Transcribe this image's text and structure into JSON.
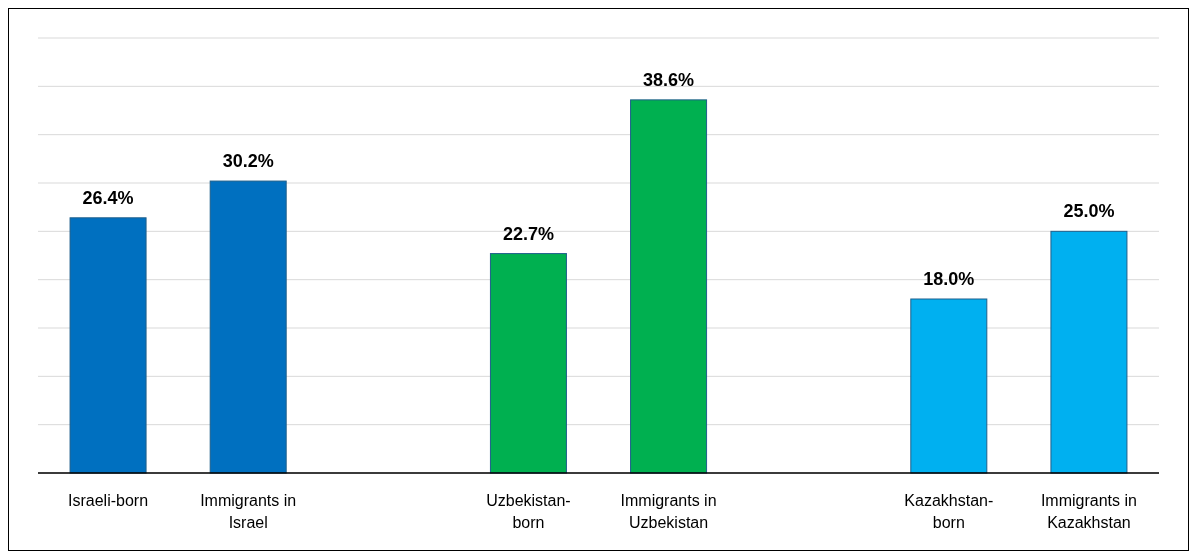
{
  "chart_data": {
    "type": "bar",
    "categories": [
      "Israeli-born",
      "Immigrants in Israel",
      null,
      "Uzbekistan-born",
      "Immigrants in Uzbekistan",
      null,
      "Kazakhstan-born",
      "Immigrants in Kazakhstan"
    ],
    "values": [
      26.4,
      30.2,
      null,
      22.7,
      38.6,
      null,
      18.0,
      25.0
    ],
    "colors": [
      "#0070c0",
      "#0070c0",
      null,
      "#00b050",
      "#00b050",
      null,
      "#00b0f0",
      "#00b0f0"
    ],
    "value_labels": [
      "26.4%",
      "30.2%",
      null,
      "22.7%",
      "38.6%",
      null,
      "18.0%",
      "25.0%"
    ],
    "ylim": [
      0,
      45
    ],
    "yticks": [
      {
        "value": 0,
        "label": null
      },
      {
        "value": 5,
        "label": null
      },
      {
        "value": 10,
        "label": null
      },
      {
        "value": 15,
        "label": null
      },
      {
        "value": 20,
        "label": null
      },
      {
        "value": 25,
        "label": null
      },
      {
        "value": 30,
        "label": null
      },
      {
        "value": 35,
        "label": null
      },
      {
        "value": 40,
        "label": null
      },
      {
        "value": 45,
        "label": null
      }
    ],
    "grid": "y",
    "tick_labels": "x"
  }
}
